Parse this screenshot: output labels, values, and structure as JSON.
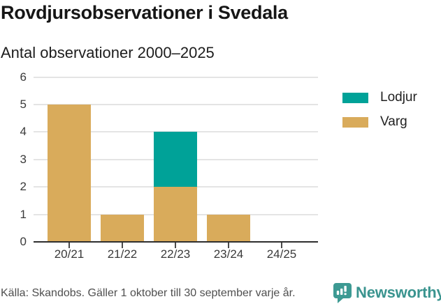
{
  "chart_data": {
    "type": "bar",
    "stacked": true,
    "title": "Rovdjursobservationer i Svedala",
    "subtitle": "Antal observationer 2000–2025",
    "categories": [
      "20/21",
      "21/22",
      "22/23",
      "23/24",
      "24/25"
    ],
    "series": [
      {
        "name": "Lodjur",
        "color": "#00A298",
        "values": [
          0,
          0,
          2,
          0,
          0
        ]
      },
      {
        "name": "Varg",
        "color": "#D9AB5B",
        "values": [
          5,
          1,
          2,
          1,
          0
        ]
      }
    ],
    "stack_order_bottom_to_top": [
      "Varg",
      "Lodjur"
    ],
    "xlabel": "",
    "ylabel": "",
    "ylim": [
      0,
      6
    ],
    "yticks": [
      0,
      1,
      2,
      3,
      4,
      5,
      6
    ],
    "grid": true,
    "legend_position": "right"
  },
  "footer": {
    "source": "Källa: Skandobs. Gäller 1 oktober till 30 september varje år.",
    "brand": "Newsworthy",
    "logo_icon": "bar-chart-speech-bubble-icon"
  },
  "colors": {
    "lodjur_teal": "#00A298",
    "varg_gold": "#D9AB5B",
    "brand_teal": "#3A948F",
    "gridline_gray": "#E4E4E4",
    "axis_dark": "#2E2E2E"
  }
}
